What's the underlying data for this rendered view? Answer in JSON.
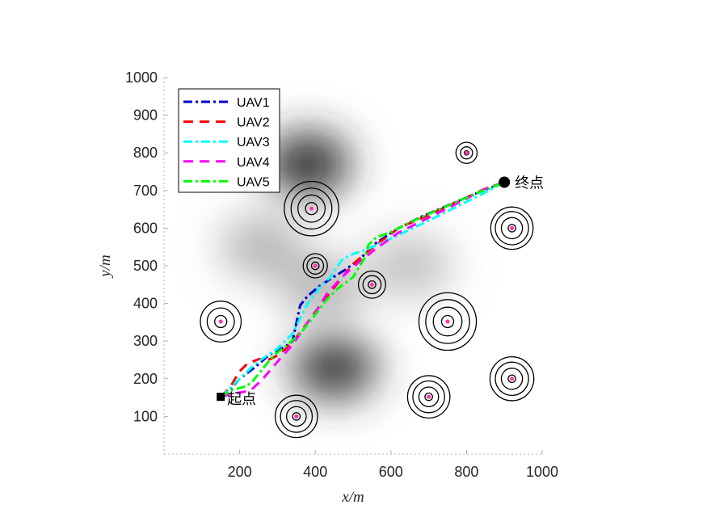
{
  "chart_data": {
    "type": "line",
    "xlabel": "x/m",
    "ylabel": "y/m",
    "xlim": [
      0,
      1000
    ],
    "ylim": [
      0,
      1000
    ],
    "x_ticks": [
      200,
      400,
      600,
      800,
      1000
    ],
    "y_ticks": [
      100,
      200,
      300,
      400,
      500,
      600,
      700,
      800,
      900,
      1000
    ],
    "legend_location": "top-left",
    "background": "grayscale terrain map",
    "start": {
      "label": "起点",
      "x": 150,
      "y": 152
    },
    "end": {
      "label": "终点",
      "x": 900,
      "y": 722
    },
    "terrain_features": [
      {
        "x": 380,
        "y": 770,
        "level": 0.85
      },
      {
        "x": 450,
        "y": 230,
        "level": 0.8
      },
      {
        "x": 260,
        "y": 550,
        "level": 0.3
      },
      {
        "x": 650,
        "y": 500,
        "level": 0.25
      },
      {
        "x": 420,
        "y": 440,
        "level": 0.3
      }
    ],
    "threats": [
      {
        "x": 390,
        "y": 652,
        "rings": [
          16,
          36,
          54,
          72
        ]
      },
      {
        "x": 150,
        "y": 352,
        "rings": [
          16,
          36,
          54
        ]
      },
      {
        "x": 750,
        "y": 352,
        "rings": [
          16,
          38,
          58,
          76
        ]
      },
      {
        "x": 400,
        "y": 500,
        "rings": [
          10,
          22,
          32
        ]
      },
      {
        "x": 550,
        "y": 450,
        "rings": [
          10,
          24,
          36
        ]
      },
      {
        "x": 800,
        "y": 800,
        "rings": [
          6,
          16,
          28
        ]
      },
      {
        "x": 920,
        "y": 600,
        "rings": [
          10,
          28,
          44,
          56
        ]
      },
      {
        "x": 920,
        "y": 200,
        "rings": [
          10,
          28,
          44,
          58
        ]
      },
      {
        "x": 700,
        "y": 152,
        "rings": [
          10,
          26,
          42,
          56
        ]
      },
      {
        "x": 350,
        "y": 100,
        "rings": [
          10,
          26,
          42,
          56
        ]
      }
    ],
    "series": [
      {
        "name": "UAV1",
        "color": "#0000cd",
        "dash": "dashdot",
        "x": [
          150,
          175,
          200,
          240,
          280,
          320,
          340,
          360,
          380,
          410,
          440,
          480,
          520,
          560,
          620,
          680,
          750,
          820,
          900
        ],
        "y": [
          152,
          172,
          200,
          230,
          265,
          285,
          300,
          395,
          420,
          445,
          465,
          490,
          520,
          560,
          600,
          630,
          660,
          690,
          722
        ]
      },
      {
        "name": "UAV2",
        "color": "#ff0000",
        "dash": "dash",
        "x": [
          150,
          175,
          200,
          220,
          250,
          280,
          300,
          320,
          350,
          380,
          420,
          460,
          500,
          560,
          620,
          700,
          780,
          850,
          900
        ],
        "y": [
          152,
          178,
          220,
          240,
          252,
          252,
          262,
          278,
          310,
          350,
          405,
          455,
          505,
          555,
          600,
          635,
          672,
          705,
          722
        ]
      },
      {
        "name": "UAV3",
        "color": "#00ffff",
        "dash": "dashdot",
        "x": [
          150,
          180,
          210,
          240,
          270,
          300,
          320,
          340,
          360,
          380,
          410,
          440,
          470,
          490,
          540,
          600,
          680,
          760,
          840,
          900
        ],
        "y": [
          152,
          180,
          210,
          238,
          260,
          280,
          300,
          320,
          360,
          400,
          440,
          470,
          515,
          528,
          545,
          572,
          610,
          650,
          690,
          722
        ]
      },
      {
        "name": "UAV4",
        "color": "#ff00ff",
        "dash": "dash",
        "x": [
          150,
          180,
          210,
          230,
          260,
          300,
          340,
          360,
          380,
          400,
          430,
          470,
          510,
          560,
          620,
          700,
          780,
          850,
          900
        ],
        "y": [
          152,
          160,
          165,
          170,
          198,
          245,
          290,
          320,
          350,
          375,
          425,
          470,
          505,
          545,
          588,
          628,
          668,
          705,
          722
        ]
      },
      {
        "name": "UAV5",
        "color": "#00ff00",
        "dash": "dashdot",
        "x": [
          150,
          180,
          210,
          230,
          260,
          290,
          320,
          360,
          400,
          430,
          460,
          500,
          530,
          540,
          560,
          600,
          660,
          740,
          820,
          900
        ],
        "y": [
          152,
          170,
          178,
          188,
          225,
          262,
          285,
          320,
          370,
          410,
          440,
          470,
          520,
          555,
          575,
          590,
          620,
          655,
          690,
          722
        ]
      }
    ]
  }
}
